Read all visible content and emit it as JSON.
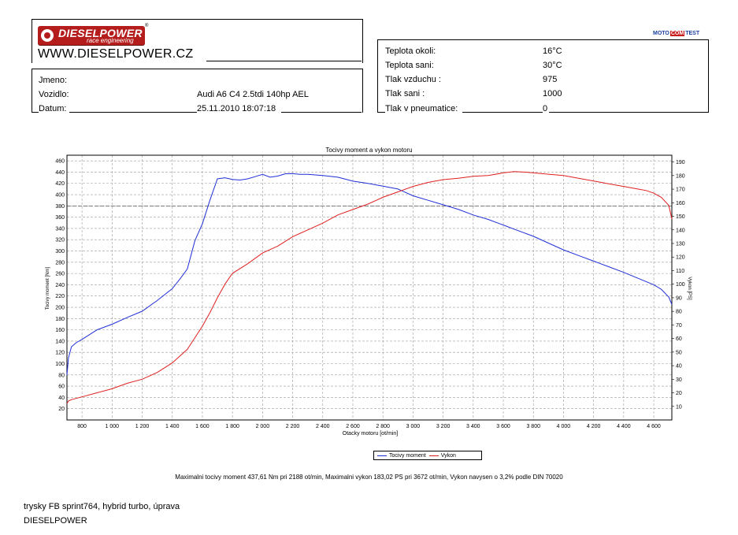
{
  "header": {
    "logo_text": "DIESELPOWER",
    "logo_subtext": "race engineering",
    "registered": "®",
    "url": "WWW.DIESELPOWER.CZ",
    "mototest": [
      "MOTO",
      "COM",
      "TEST"
    ]
  },
  "vehicle_info": {
    "name_label": "Jmeno:",
    "name_value": "",
    "vehicle_label": "Vozidlo:",
    "vehicle_value": "Audi A6 C4 2.5tdi 140hp AEL",
    "date_label": "Datum:",
    "date_value": "25.11.2010 18:07:18"
  },
  "conditions": {
    "rows": [
      {
        "label": "Teplota okoli:",
        "value": "16°C"
      },
      {
        "label": "Teplota sani:",
        "value": "30°C"
      },
      {
        "label": "Tlak vzduchu :",
        "value": "975"
      },
      {
        "label": "Tlak sani :",
        "value": "1000"
      },
      {
        "label": "Tlak v pneumatice:",
        "value": "0"
      }
    ]
  },
  "chart_data": {
    "type": "line",
    "title": "Tocivy moment a vykon motoru",
    "xlabel": "Otacky motoru [ot/min]",
    "ylabel_left": "Tocivy moment [Nm]",
    "ylabel_right": "Vykon [PS]",
    "xlim": [
      700,
      4720
    ],
    "ylim_left": [
      0,
      470
    ],
    "ylim_right": [
      0,
      195
    ],
    "x_ticks": [
      800,
      1000,
      1200,
      1400,
      1600,
      1800,
      2000,
      2200,
      2400,
      2600,
      2800,
      3000,
      3200,
      3400,
      3600,
      3800,
      4000,
      4200,
      4400,
      4600
    ],
    "x_tick_labels": [
      "800",
      "1 000",
      "1 200",
      "1 400",
      "1 600",
      "1 800",
      "2 000",
      "2 200",
      "2 400",
      "2 600",
      "2 800",
      "3 000",
      "3 200",
      "3 400",
      "3 600",
      "3 800",
      "4 000",
      "4 200",
      "4 400",
      "4 600"
    ],
    "y_left_ticks": [
      20,
      40,
      60,
      80,
      100,
      120,
      140,
      160,
      180,
      200,
      220,
      240,
      260,
      280,
      300,
      320,
      340,
      360,
      380,
      400,
      420,
      440,
      460
    ],
    "y_right_ticks": [
      10,
      20,
      30,
      40,
      50,
      60,
      70,
      80,
      90,
      100,
      110,
      120,
      130,
      140,
      150,
      160,
      170,
      180,
      190
    ],
    "grid": true,
    "legend_position": "bottom-center",
    "series": [
      {
        "name": "Tocivy moment",
        "axis": "left",
        "color": "#1f2fd6",
        "x": [
          700,
          710,
          730,
          760,
          800,
          900,
          1000,
          1100,
          1200,
          1300,
          1400,
          1450,
          1500,
          1550,
          1600,
          1650,
          1700,
          1750,
          1800,
          1850,
          1900,
          1950,
          2000,
          2050,
          2100,
          2150,
          2188,
          2250,
          2300,
          2400,
          2500,
          2600,
          2700,
          2800,
          2900,
          3000,
          3100,
          3200,
          3300,
          3400,
          3500,
          3600,
          3700,
          3800,
          3900,
          4000,
          4100,
          4200,
          4300,
          4400,
          4500,
          4600,
          4650,
          4700,
          4720
        ],
        "y": [
          80,
          110,
          130,
          137,
          143,
          160,
          170,
          182,
          193,
          212,
          233,
          250,
          268,
          318,
          348,
          390,
          428,
          430,
          427,
          426,
          428,
          432,
          436,
          431,
          433,
          437,
          437.6,
          436,
          436,
          434,
          431,
          424,
          420,
          415,
          410,
          398,
          390,
          382,
          374,
          364,
          356,
          346,
          336,
          326,
          314,
          302,
          292,
          282,
          272,
          262,
          251,
          240,
          232,
          218,
          205
        ]
      },
      {
        "name": "Vykon",
        "axis": "right",
        "color": "#e02020",
        "x": [
          700,
          710,
          730,
          800,
          900,
          1000,
          1100,
          1200,
          1300,
          1400,
          1500,
          1600,
          1650,
          1700,
          1750,
          1800,
          1900,
          2000,
          2100,
          2200,
          2300,
          2400,
          2500,
          2600,
          2700,
          2800,
          2900,
          3000,
          3100,
          3200,
          3300,
          3400,
          3500,
          3600,
          3672,
          3750,
          3800,
          3900,
          4000,
          4100,
          4200,
          4300,
          4400,
          4500,
          4550,
          4600,
          4650,
          4700,
          4720
        ],
        "y": [
          12,
          14,
          15,
          17,
          20,
          23,
          27,
          30,
          35,
          42,
          52,
          69,
          79,
          90,
          100,
          108,
          115,
          123,
          128,
          135,
          140,
          145,
          151,
          155,
          159,
          164,
          168,
          172,
          175,
          177,
          178,
          179.5,
          180,
          182,
          183,
          182.5,
          182,
          181,
          180,
          178,
          176,
          174,
          172,
          170,
          169,
          167,
          164,
          158,
          148
        ]
      }
    ]
  },
  "max_summary": "Maximalni tocivy moment 437,61 Nm pri 2188 ot/min,  Maximalni vykon 183,02 PS pri 3672 ot/min,  Vykon navysen o 3,2% podle DIN 70020",
  "notes": {
    "line1": "trysky FB sprint764, hybrid turbo, úprava",
    "line2": "DIESELPOWER"
  }
}
